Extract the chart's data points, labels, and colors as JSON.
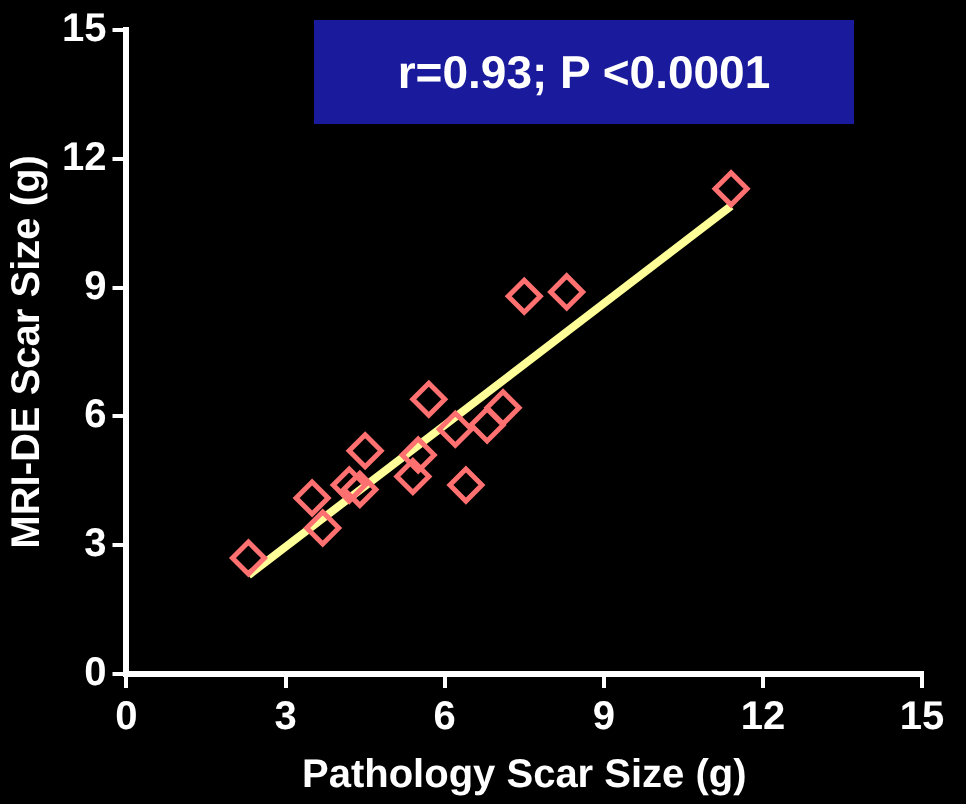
{
  "chart_data": {
    "type": "scatter",
    "xlabel": "Pathology Scar Size (g)",
    "ylabel": "MRI-DE Scar Size (g)",
    "annotations": [
      "r=0.93; P <0.0001"
    ],
    "xlim": [
      0,
      15
    ],
    "ylim": [
      0,
      15
    ],
    "xticks": [
      0,
      3,
      6,
      9,
      12,
      15
    ],
    "yticks": [
      0,
      3,
      6,
      9,
      12,
      15
    ],
    "grid": false,
    "legend": false,
    "marker": "diamond",
    "series": [
      {
        "color": "#ff7070",
        "x": [
          2.3,
          3.5,
          3.7,
          4.2,
          4.4,
          4.5,
          5.4,
          5.5,
          5.7,
          6.2,
          6.4,
          6.8,
          7.1,
          7.5,
          8.3,
          11.4
        ],
        "values": [
          2.7,
          4.1,
          3.4,
          4.4,
          4.3,
          5.2,
          4.6,
          5.1,
          6.4,
          5.7,
          4.4,
          5.8,
          6.2,
          8.8,
          8.9,
          11.3
        ]
      },
      {
        "type": "line",
        "marker": "none",
        "color": "#ffff99",
        "x": [
          2.3,
          11.4
        ],
        "values": [
          2.3,
          10.9
        ]
      }
    ]
  }
}
